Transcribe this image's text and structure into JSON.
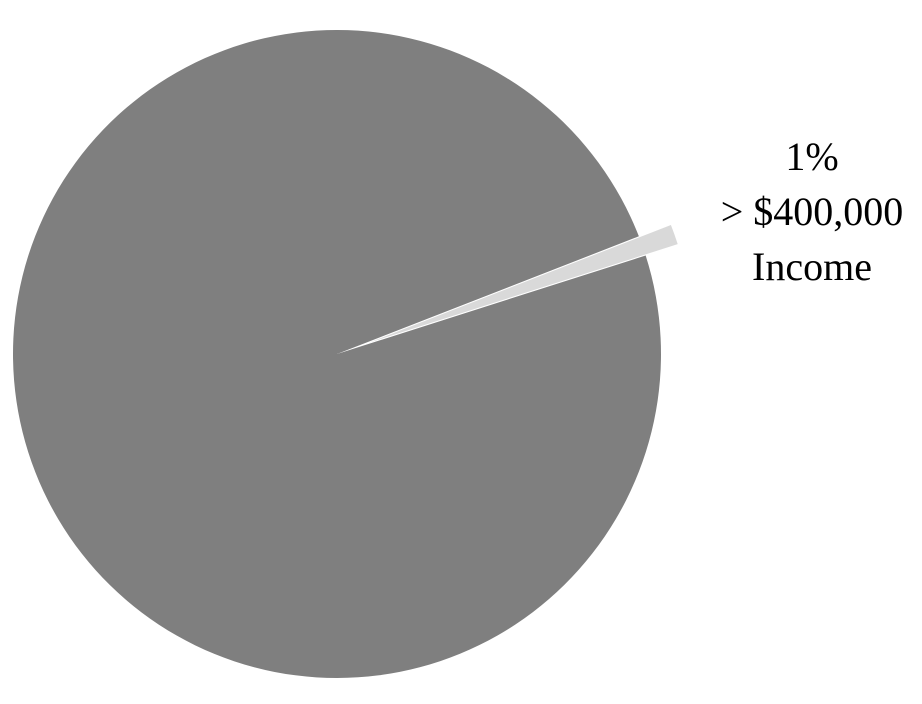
{
  "chart_data": {
    "type": "pie",
    "title": "",
    "slices": [
      {
        "value": 99,
        "color": "#7f7f7f",
        "label_lines": []
      },
      {
        "value": 1,
        "color": "#d9d9d9",
        "exploded": true,
        "label_lines": [
          "1%",
          "> $400,000",
          "Income"
        ]
      }
    ],
    "legend": "none"
  }
}
